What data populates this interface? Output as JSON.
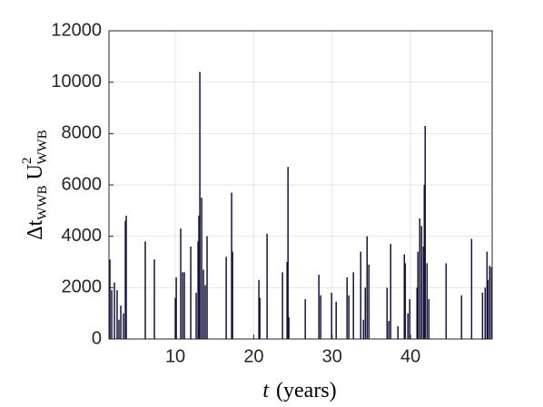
{
  "chart_data": {
    "type": "stem",
    "xlabel": [
      "t",
      "(years)"
    ],
    "ylabel": [
      "Δt",
      "WWB",
      "U",
      "2",
      "WWB"
    ],
    "color": "#14143c",
    "grid": true,
    "xlim": [
      1.54,
      50.4
    ],
    "ylim": [
      0,
      12000
    ],
    "xticks": [
      10,
      20,
      30,
      40
    ],
    "yticks": [
      0,
      2000,
      4000,
      6000,
      8000,
      10000,
      12000
    ],
    "x": [
      1.66,
      1.89,
      2.24,
      2.58,
      2.81,
      3.05,
      3.39,
      3.63,
      3.74,
      6.17,
      7.33,
      10.0,
      10.12,
      10.69,
      10.93,
      11.16,
      11.97,
      12.66,
      12.9,
      13.01,
      13.13,
      13.36,
      13.59,
      13.82,
      14.05,
      16.49,
      17.18,
      17.3,
      20.66,
      20.78,
      21.7,
      23.67,
      24.25,
      24.37,
      24.48,
      26.57,
      28.31,
      28.54,
      29.93,
      30.51,
      31.9,
      32.13,
      32.71,
      33.64,
      33.98,
      34.22,
      34.45,
      34.68,
      37.0,
      37.23,
      37.46,
      38.39,
      39.2,
      39.32,
      39.66,
      39.89,
      40.82,
      40.94,
      41.17,
      41.4,
      41.63,
      41.75,
      41.86,
      42.1,
      42.33,
      44.53,
      46.5,
      47.78,
      49.17,
      49.51,
      49.75,
      49.86,
      50.09,
      50.32
    ],
    "values": [
      3100,
      1900,
      2200,
      1900,
      750,
      1300,
      1000,
      4600,
      4800,
      3800,
      3100,
      1600,
      2400,
      4300,
      2600,
      2600,
      3600,
      1800,
      3800,
      4800,
      10400,
      5500,
      2700,
      2100,
      4000,
      3200,
      5700,
      3400,
      2300,
      1600,
      4100,
      2600,
      3000,
      6700,
      850,
      1550,
      2500,
      1700,
      1800,
      1450,
      2400,
      1700,
      2600,
      3400,
      750,
      2000,
      4000,
      2900,
      2000,
      700,
      3700,
      500,
      3300,
      2950,
      1000,
      1550,
      2000,
      3400,
      4700,
      4400,
      3600,
      6000,
      8300,
      2950,
      1550,
      2950,
      1700,
      3900,
      1800,
      2000,
      3400,
      2300,
      2850,
      2800
    ]
  }
}
